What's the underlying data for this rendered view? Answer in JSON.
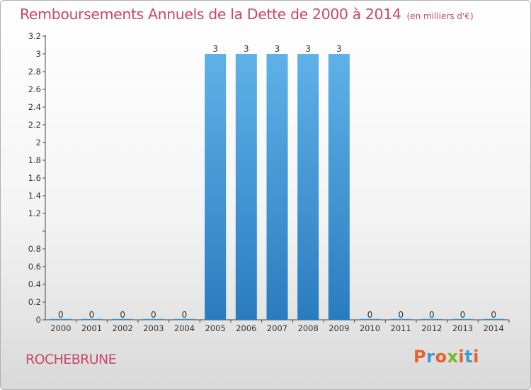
{
  "header": {
    "title": "Remboursements Annuels de la Dette de 2000 à 2014",
    "unit": "(en milliers d'€)"
  },
  "footer": {
    "commune": "ROCHEBRUNE",
    "brand": "Proxiti",
    "brand_colors": [
      "#e9622b",
      "#3c9ad8",
      "#e9622b",
      "#7ab829",
      "#e9622b",
      "#3c9ad8",
      "#e9622b"
    ]
  },
  "chart_data": {
    "type": "bar",
    "title": "Remboursements Annuels de la Dette de 2000 à 2014",
    "subtitle": "(en milliers d'€)",
    "xlabel": "",
    "ylabel": "",
    "categories": [
      "2000",
      "2001",
      "2002",
      "2003",
      "2004",
      "2005",
      "2006",
      "2007",
      "2008",
      "2009",
      "2010",
      "2011",
      "2012",
      "2013",
      "2014"
    ],
    "values": [
      0,
      0,
      0,
      0,
      0,
      3,
      3,
      3,
      3,
      3,
      0,
      0,
      0,
      0,
      0
    ],
    "data_labels": [
      "0",
      "0",
      "0",
      "0",
      "0",
      "3",
      "3",
      "3",
      "3",
      "3",
      "0",
      "0",
      "0",
      "0",
      "0"
    ],
    "ylim": [
      0,
      3.2
    ],
    "yticks": [
      0,
      0.2,
      0.4,
      0.6,
      0.8,
      1,
      1.2,
      1.4,
      1.6,
      1.8,
      2,
      2.2,
      2.4,
      2.6,
      2.8,
      3,
      3.2
    ],
    "ytick_labels": [
      "0",
      "0.2",
      "0.4",
      "0.6",
      "0.8",
      "",
      "1.2",
      "1.4",
      "1.6",
      "1.8",
      "2",
      "2.2",
      "2.4",
      "2.6",
      "2.8",
      "3",
      "3.2"
    ],
    "grid": false,
    "legend": "none",
    "bar_color": "#4a9fdc"
  }
}
